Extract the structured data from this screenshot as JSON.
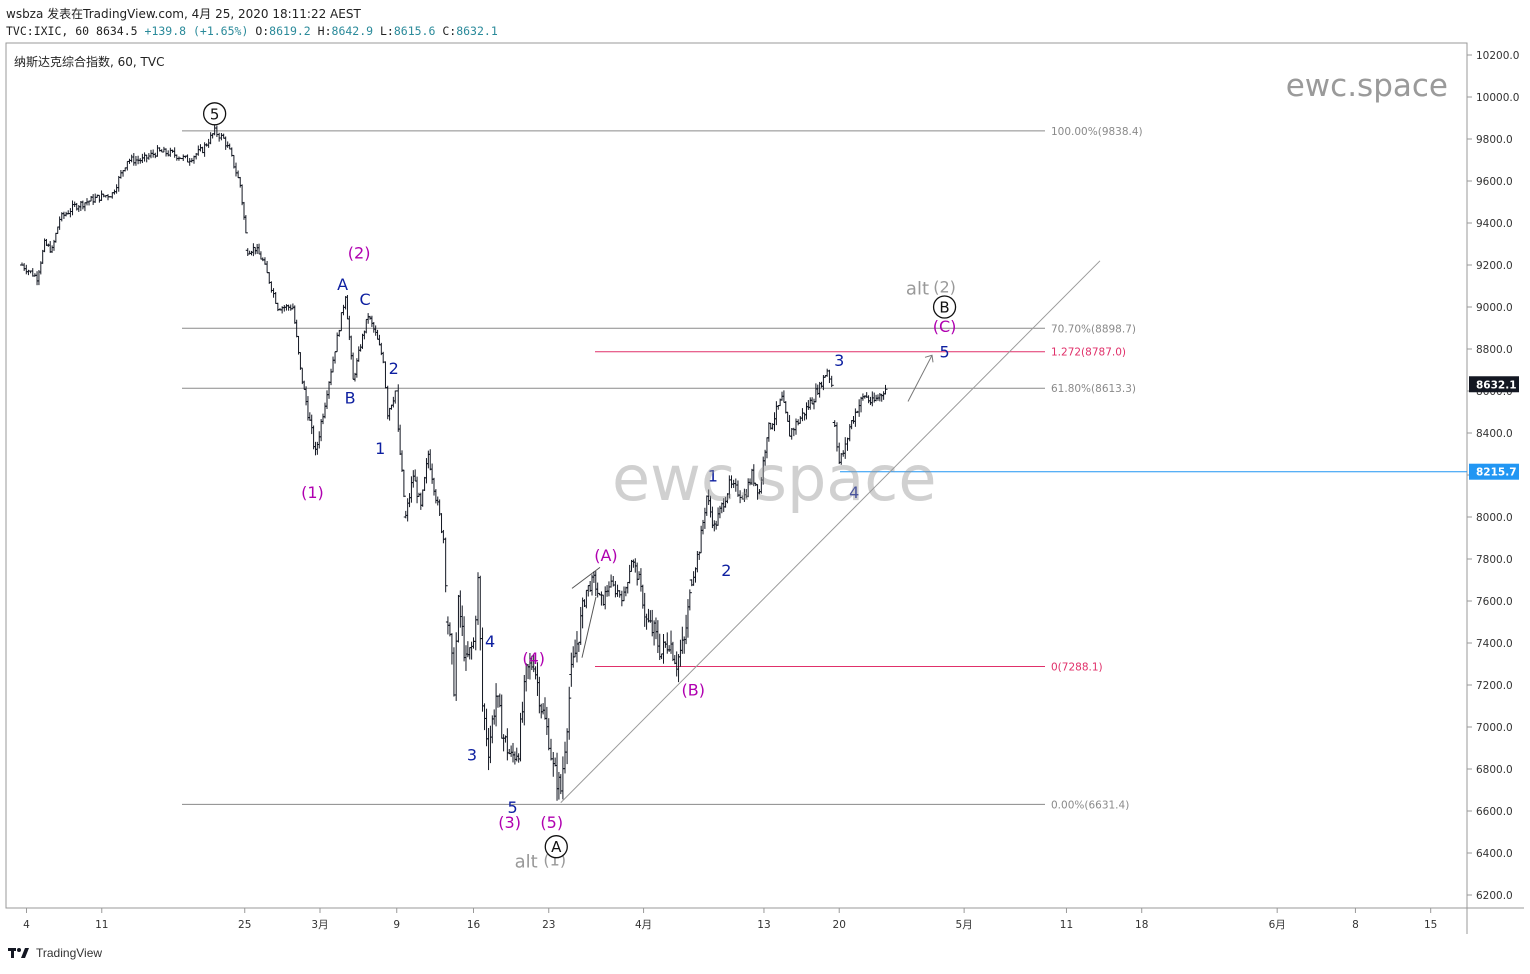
{
  "header": {
    "line1": "wsbza 发表在TradingView.com, 4月 25, 2020 18:11:22 AEST",
    "symbol": "TVC:IXIC, 60",
    "last": "8634.5",
    "change": "+139.8 (+1.65%)",
    "o": "8619.2",
    "h": "8642.9",
    "l": "8615.6",
    "c": "8632.1"
  },
  "pane_title": "纳斯达克综合指数, 60, TVC",
  "watermark": "ewc.space",
  "footer_brand": "TradingView",
  "colors": {
    "up": "#131722",
    "pink": "#e0306a",
    "blue": "#2196f3",
    "purple": "#b000b0",
    "navy": "#0d1fa0",
    "grey": "#999999"
  },
  "chart_data": {
    "type": "bar",
    "interval": "60",
    "ylim": [
      6100,
      10300
    ],
    "y_ticks": [
      "10200.0",
      "10000.0",
      "9800.0",
      "9600.0",
      "9400.0",
      "9200.0",
      "9000.0",
      "8800.0",
      "8600.0",
      "8400.0",
      "8200.0",
      "8000.0",
      "7800.0",
      "7600.0",
      "7400.0",
      "7200.0",
      "7000.0",
      "6800.0",
      "6600.0",
      "6400.0",
      "6200.0"
    ],
    "x_ticks": [
      {
        "label": "4",
        "t": 0.3
      },
      {
        "label": "11",
        "t": 5.3
      },
      {
        "label": "25",
        "t": 14.8
      },
      {
        "label": "3月",
        "t": 19.8
      },
      {
        "label": "9",
        "t": 24.9
      },
      {
        "label": "16",
        "t": 30.0
      },
      {
        "label": "23",
        "t": 35.0
      },
      {
        "label": "4月",
        "t": 41.3
      },
      {
        "label": "13",
        "t": 49.3
      },
      {
        "label": "20",
        "t": 54.3
      },
      {
        "label": "5月",
        "t": 62.6
      },
      {
        "label": "11",
        "t": 69.4
      },
      {
        "label": "18",
        "t": 74.4
      },
      {
        "label": "6月",
        "t": 83.4
      },
      {
        "label": "8",
        "t": 88.6
      },
      {
        "label": "15",
        "t": 93.6
      }
    ],
    "waypoints": [
      [
        0,
        9200
      ],
      [
        1,
        9140
      ],
      [
        1.5,
        9300
      ],
      [
        2,
        9270
      ],
      [
        2.5,
        9420
      ],
      [
        3.5,
        9480
      ],
      [
        5,
        9520
      ],
      [
        6,
        9540
      ],
      [
        7,
        9700
      ],
      [
        8,
        9700
      ],
      [
        9,
        9740
      ],
      [
        10,
        9730
      ],
      [
        11,
        9700
      ],
      [
        12,
        9750
      ],
      [
        12.8,
        9836
      ],
      [
        13.4,
        9800
      ],
      [
        13.8,
        9740
      ],
      [
        14.5,
        9580
      ],
      [
        15,
        9270
      ],
      [
        15.5,
        9280
      ],
      [
        16,
        9220
      ],
      [
        17,
        9000
      ],
      [
        18,
        9000
      ],
      [
        18.5,
        8700
      ],
      [
        19,
        8500
      ],
      [
        19.5,
        8300
      ],
      [
        20,
        8500
      ],
      [
        20.8,
        8800
      ],
      [
        21.5,
        9060
      ],
      [
        22,
        8650
      ],
      [
        22.5,
        8820
      ],
      [
        23,
        8960
      ],
      [
        23.5,
        8870
      ],
      [
        24,
        8750
      ],
      [
        24.3,
        8500
      ],
      [
        24.8,
        8600
      ],
      [
        25,
        8400
      ],
      [
        25.5,
        8000
      ],
      [
        26,
        8200
      ],
      [
        26.5,
        8040
      ],
      [
        27,
        8300
      ],
      [
        27.5,
        8100
      ],
      [
        28,
        7900
      ],
      [
        28.3,
        7500
      ],
      [
        28.7,
        7200
      ],
      [
        29,
        7600
      ],
      [
        29.5,
        7300
      ],
      [
        30,
        7400
      ],
      [
        30.3,
        7700
      ],
      [
        30.6,
        7100
      ],
      [
        31,
        6900
      ],
      [
        31.5,
        7150
      ],
      [
        32,
        6950
      ],
      [
        32.5,
        6850
      ],
      [
        33,
        6900
      ],
      [
        33.5,
        7250
      ],
      [
        34,
        7320
      ],
      [
        34.5,
        7100
      ],
      [
        35,
        6950
      ],
      [
        35.3,
        6800
      ],
      [
        35.8,
        6700
      ],
      [
        36.5,
        7250
      ],
      [
        37,
        7450
      ],
      [
        37.5,
        7650
      ],
      [
        38,
        7700
      ],
      [
        38.5,
        7580
      ],
      [
        39,
        7680
      ],
      [
        40,
        7620
      ],
      [
        40.5,
        7800
      ],
      [
        41,
        7700
      ],
      [
        41.5,
        7500
      ],
      [
        42,
        7450
      ],
      [
        42.5,
        7350
      ],
      [
        43,
        7420
      ],
      [
        43.5,
        7310
      ],
      [
        44,
        7400
      ],
      [
        44.5,
        7700
      ],
      [
        45,
        7850
      ],
      [
        45.5,
        8100
      ],
      [
        46,
        7950
      ],
      [
        46.5,
        8050
      ],
      [
        47,
        8150
      ],
      [
        48,
        8100
      ],
      [
        48.5,
        8200
      ],
      [
        49,
        8120
      ],
      [
        49.5,
        8400
      ],
      [
        50,
        8480
      ],
      [
        50.5,
        8560
      ],
      [
        51,
        8400
      ],
      [
        52,
        8500
      ],
      [
        52.5,
        8560
      ],
      [
        53,
        8620
      ],
      [
        53.5,
        8700
      ],
      [
        53.8,
        8630
      ],
      [
        54,
        8450
      ],
      [
        54.3,
        8260
      ],
      [
        54.7,
        8330
      ],
      [
        55,
        8430
      ],
      [
        55.5,
        8520
      ],
      [
        56,
        8580
      ],
      [
        56.5,
        8540
      ],
      [
        57,
        8580
      ],
      [
        57.5,
        8620
      ]
    ],
    "fib_gray": [
      {
        "label": "100.00%(9838.4)",
        "y": 9838.4
      },
      {
        "label": "70.70%(8898.7)",
        "y": 8898.7
      },
      {
        "label": "61.80%(8613.3)",
        "y": 8613.3
      },
      {
        "label": "0.00%(6631.4)",
        "y": 6631.4
      }
    ],
    "fib_pink": [
      {
        "label": "1.272(8787.0)",
        "y": 8787.0
      },
      {
        "label": "0(7288.1)",
        "y": 7288.1
      }
    ],
    "price_line": {
      "label": "8215.7",
      "y": 8215.7
    },
    "last_price": {
      "label": "8632.1",
      "y": 8632.1
    },
    "wave_labels": [
      {
        "text": "A",
        "t": 21.3,
        "y": 9080,
        "color": "navy"
      },
      {
        "text": "(2)",
        "t": 22.4,
        "y": 9230,
        "color": "purple"
      },
      {
        "text": "C",
        "t": 22.8,
        "y": 9010,
        "color": "navy"
      },
      {
        "text": "B",
        "t": 21.8,
        "y": 8540,
        "color": "navy"
      },
      {
        "text": "2",
        "t": 24.7,
        "y": 8680,
        "color": "navy"
      },
      {
        "text": "1",
        "t": 23.8,
        "y": 8300,
        "color": "navy"
      },
      {
        "text": "(1)",
        "t": 19.3,
        "y": 8090,
        "color": "purple"
      },
      {
        "text": "4",
        "t": 31.1,
        "y": 7380,
        "color": "navy"
      },
      {
        "text": "(4)",
        "t": 34.0,
        "y": 7300,
        "color": "purple"
      },
      {
        "text": "3",
        "t": 29.9,
        "y": 6840,
        "color": "navy"
      },
      {
        "text": "5",
        "t": 32.6,
        "y": 6590,
        "color": "navy"
      },
      {
        "text": "(3)",
        "t": 32.4,
        "y": 6520,
        "color": "purple"
      },
      {
        "text": "(5)",
        "t": 35.2,
        "y": 6520,
        "color": "purple"
      },
      {
        "text": "alt",
        "t": 33.5,
        "y": 6330,
        "color": "grey"
      },
      {
        "text": "(1)",
        "t": 35.4,
        "y": 6340,
        "color": "grey"
      },
      {
        "text": "(A)",
        "t": 38.8,
        "y": 7790,
        "color": "purple"
      },
      {
        "text": "(B)",
        "t": 44.6,
        "y": 7150,
        "color": "purple"
      },
      {
        "text": "1",
        "t": 45.9,
        "y": 8170,
        "color": "navy"
      },
      {
        "text": "2",
        "t": 46.8,
        "y": 7720,
        "color": "navy"
      },
      {
        "text": "3",
        "t": 54.3,
        "y": 8720,
        "color": "navy"
      },
      {
        "text": "4",
        "t": 55.3,
        "y": 8090,
        "color": "navy"
      },
      {
        "text": "5",
        "t": 61.3,
        "y": 8760,
        "color": "navy"
      },
      {
        "text": "(C)",
        "t": 61.3,
        "y": 8880,
        "color": "purple"
      },
      {
        "text": "alt",
        "t": 59.5,
        "y": 9060,
        "color": "grey"
      },
      {
        "text": "(2)",
        "t": 61.3,
        "y": 9070,
        "color": "grey"
      }
    ],
    "circle_labels": [
      {
        "text": "5",
        "t": 12.8,
        "y": 9920
      },
      {
        "text": "B",
        "t": 61.3,
        "y": 9000
      },
      {
        "text": "A",
        "t": 35.5,
        "y": 6430
      }
    ]
  }
}
